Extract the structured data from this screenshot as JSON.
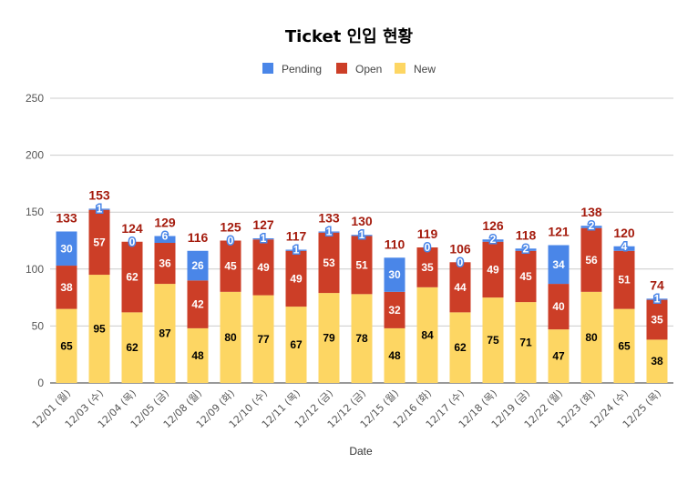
{
  "chart_data": {
    "type": "bar",
    "stacked": true,
    "title": "Ticket 인입 현황",
    "xlabel": "Date",
    "ylabel": "",
    "ylim": [
      0,
      250
    ],
    "yticks": [
      0,
      50,
      100,
      150,
      200,
      250
    ],
    "grid": true,
    "legend_position": "top",
    "categories": [
      "12/01 (월)",
      "12/03 (수)",
      "12/04 (목)",
      "12/05 (금)",
      "12/08 (월)",
      "12/09 (화)",
      "12/10 (수)",
      "12/11 (목)",
      "12/12 (금)",
      "12/12 (금)",
      "12/15 (월)",
      "12/16 (화)",
      "12/17 (수)",
      "12/18 (목)",
      "12/19 (금)",
      "12/22 (월)",
      "12/23 (화)",
      "12/24 (수)",
      "12/25 (목)"
    ],
    "series": [
      {
        "name": "New",
        "color": "#fdd663",
        "label_color": "#000000",
        "values": [
          65,
          95,
          62,
          87,
          48,
          80,
          77,
          67,
          79,
          78,
          48,
          84,
          62,
          75,
          71,
          47,
          80,
          65,
          38
        ]
      },
      {
        "name": "Open",
        "color": "#cc3e27",
        "label_color": "#ffffff",
        "values": [
          38,
          57,
          62,
          36,
          42,
          45,
          49,
          49,
          53,
          51,
          32,
          35,
          44,
          49,
          45,
          40,
          56,
          51,
          35
        ]
      },
      {
        "name": "Pending",
        "color": "#4a86e8",
        "label_color": "#ffffff",
        "values": [
          30,
          1,
          0,
          6,
          26,
          0,
          1,
          1,
          1,
          1,
          30,
          0,
          0,
          2,
          2,
          34,
          2,
          4,
          1
        ]
      }
    ],
    "totals": [
      133,
      153,
      124,
      129,
      116,
      125,
      127,
      117,
      133,
      130,
      110,
      119,
      106,
      126,
      118,
      121,
      138,
      120,
      74
    ],
    "legend_order": [
      "Pending",
      "Open",
      "New"
    ],
    "total_label_color": "#a51c0e"
  }
}
